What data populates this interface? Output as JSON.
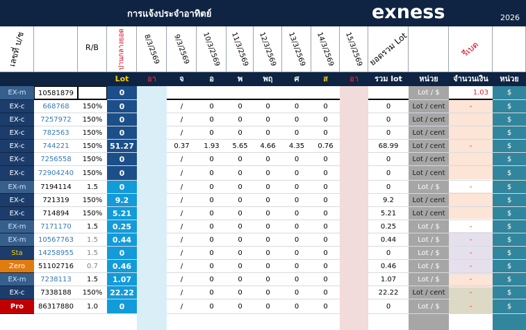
{
  "title": "การแจ้งประจำอาทิตย์",
  "brand": "exness",
  "year": "2026",
  "headers": {
    "account": "เลขที่ บ/ช",
    "rb": "R/B",
    "total_label": "ปานกลางยอด",
    "dates": [
      "8/3/2569",
      "9/3/2569",
      "10/3/2569",
      "11/3/2569",
      "12/3/2569",
      "13/3/2569",
      "14/3/2569",
      "15/3/2569"
    ],
    "lot_sum": "ยอดรวม Lot",
    "rebate": "รีเบต"
  },
  "subheaders": {
    "lot": "Lot",
    "days": [
      "อา",
      "จ",
      "อ",
      "พ",
      "พฤ",
      "ศ",
      "ส",
      "อา"
    ],
    "sum_lot": "รวม lot",
    "unit": "หน่วย",
    "amount": "จำนวนเงิน",
    "unit2": "หน่วย"
  },
  "rows": [
    {
      "type": "EX-m",
      "acct": "10581879",
      "rb": "",
      "lot": "0",
      "mon": "",
      "tue": "",
      "wed": "",
      "thu": "",
      "fri": "",
      "sat": "",
      "sum": "",
      "unit": "Lot / $",
      "amount": "1.03",
      "cur": "$"
    },
    {
      "type": "EX-c",
      "acct": "668768",
      "rb": "150%",
      "lot": "0",
      "mon": "/",
      "tue": "0",
      "wed": "0",
      "thu": "0",
      "fri": "0",
      "sat": "0",
      "sum": "0",
      "unit": "Lot / cent",
      "amount": "-",
      "cur": "$"
    },
    {
      "type": "EX-c",
      "acct": "7257972",
      "rb": "150%",
      "lot": "0",
      "mon": "/",
      "tue": "0",
      "wed": "0",
      "thu": "0",
      "fri": "0",
      "sat": "0",
      "sum": "0",
      "unit": "Lot / cent",
      "amount": "",
      "cur": "$"
    },
    {
      "type": "EX-c",
      "acct": "782563",
      "rb": "150%",
      "lot": "0",
      "mon": "/",
      "tue": "0",
      "wed": "0",
      "thu": "0",
      "fri": "0",
      "sat": "0",
      "sum": "0",
      "unit": "Lot / cent",
      "amount": "",
      "cur": "$"
    },
    {
      "type": "EX-c",
      "acct": "744221",
      "rb": "150%",
      "lot": "51.27",
      "mon": "0.37",
      "tue": "1.93",
      "wed": "5.65",
      "thu": "4.66",
      "fri": "4.35",
      "sat": "0.76",
      "sum": "68.99",
      "unit": "Lot / cent",
      "amount": "-",
      "cur": "$"
    },
    {
      "type": "EX-c",
      "acct": "7256558",
      "rb": "150%",
      "lot": "0",
      "mon": "/",
      "tue": "0",
      "wed": "0",
      "thu": "0",
      "fri": "0",
      "sat": "0",
      "sum": "0",
      "unit": "Lot / cent",
      "amount": "",
      "cur": "$"
    },
    {
      "type": "EX-c",
      "acct": "72904240",
      "rb": "150%",
      "lot": "0",
      "mon": "/",
      "tue": "0",
      "wed": "0",
      "thu": "0",
      "fri": "0",
      "sat": "0",
      "sum": "0",
      "unit": "Lot / cent",
      "amount": "",
      "cur": "$"
    },
    {
      "type": "EX-m",
      "acct": "7194114",
      "rb": "1.5",
      "lot": "0",
      "mon": "/",
      "tue": "0",
      "wed": "0",
      "thu": "0",
      "fri": "0",
      "sat": "0",
      "sum": "0",
      "unit": "Lot / $",
      "amount": "-",
      "cur": "$"
    },
    {
      "type": "EX-c",
      "acct": "721319",
      "rb": "150%",
      "lot": "9.2",
      "mon": "/",
      "tue": "0",
      "wed": "0",
      "thu": "0",
      "fri": "0",
      "sat": "0",
      "sum": "9.2",
      "unit": "Lot / cent",
      "amount": "",
      "cur": "$"
    },
    {
      "type": "EX-c",
      "acct": "714894",
      "rb": "150%",
      "lot": "5.21",
      "mon": "/",
      "tue": "0",
      "wed": "0",
      "thu": "0",
      "fri": "0",
      "sat": "0",
      "sum": "5.21",
      "unit": "Lot / cent",
      "amount": "",
      "cur": "$"
    },
    {
      "type": "EX-m",
      "acct": "7171170",
      "rb": "1.5",
      "lot": "0.25",
      "mon": "/",
      "tue": "0",
      "wed": "0",
      "thu": "0",
      "fri": "0",
      "sat": "0",
      "sum": "0.25",
      "unit": "Lot / $",
      "amount": "-",
      "cur": "$"
    },
    {
      "type": "EX-m",
      "acct": "10567763",
      "rb": "1.5",
      "lot": "0.44",
      "mon": "/",
      "tue": "0",
      "wed": "0",
      "thu": "0",
      "fri": "0",
      "sat": "0",
      "sum": "0.44",
      "unit": "Lot / $",
      "amount": "-",
      "cur": "$"
    },
    {
      "type": "Sta",
      "acct": "14258955",
      "rb": "1.5",
      "lot": "0",
      "mon": "/",
      "tue": "0",
      "wed": "0",
      "thu": "0",
      "fri": "0",
      "sat": "0",
      "sum": "0",
      "unit": "Lot / $",
      "amount": "-",
      "cur": "$"
    },
    {
      "type": "Zero",
      "acct": "51102716",
      "rb": "0.7",
      "lot": "0.46",
      "mon": "/",
      "tue": "0",
      "wed": "0",
      "thu": "0",
      "fri": "0",
      "sat": "0",
      "sum": "0.46",
      "unit": "Lot / $",
      "amount": "-",
      "cur": "$"
    },
    {
      "type": "EX-m",
      "acct": "7238113",
      "rb": "1.5",
      "lot": "1.07",
      "mon": "/",
      "tue": "0",
      "wed": "0",
      "thu": "0",
      "fri": "0",
      "sat": "0",
      "sum": "1.07",
      "unit": "Lot / $",
      "amount": "-",
      "cur": "$"
    },
    {
      "type": "EX-c",
      "acct": "7338188",
      "rb": "150%",
      "lot": "22.22",
      "mon": "/",
      "tue": "0",
      "wed": "0",
      "thu": "0",
      "fri": "0",
      "sat": "0",
      "sum": "22.22",
      "unit": "Lot / cent",
      "amount": "-",
      "cur": "$"
    },
    {
      "type": "Pro",
      "acct": "86317880",
      "rb": "1.0",
      "lot": "0",
      "mon": "/",
      "tue": "0",
      "wed": "0",
      "thu": "0",
      "fri": "0",
      "sat": "0",
      "sum": "0",
      "unit": "Lot / $",
      "amount": "-",
      "cur": "$"
    }
  ],
  "footer_marks": [
    "-",
    "-"
  ],
  "colors": {
    "navy": "#0f2442",
    "type_blue": "#1c3d6b",
    "type_mid": "#365f8c",
    "type_lightblue": "#2f79b7",
    "type_zero": "#e07b10",
    "type_pro": "#c00000",
    "lot_dark": "#1c4f89",
    "lot_bright": "#139bd9",
    "sunday_blue": "#d9eef6",
    "sunday_pink": "#f2dbdb",
    "unit_grey": "#a6a6a6",
    "amount_peach": "#fce4d6",
    "amount_lavender": "#e6e0ec",
    "amount_tan": "#ddd9c4",
    "teal": "#31859c"
  }
}
